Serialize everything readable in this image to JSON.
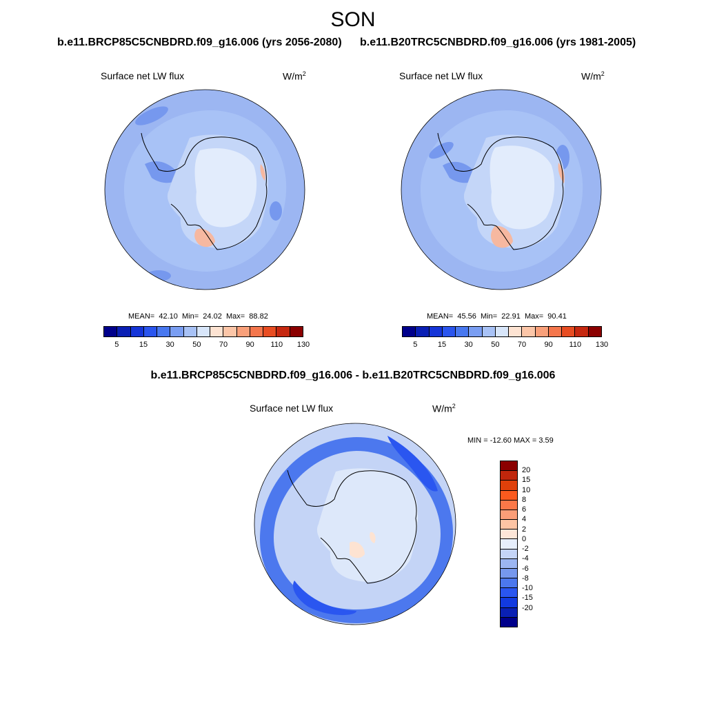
{
  "season": "SON",
  "panels": [
    {
      "case_title": "b.e11.BRCP85C5CNBDRD.f09_g16.006 (yrs 2056-2080)",
      "variable": "Surface net LW flux",
      "units_base": "W/m",
      "units_exp": "2",
      "mean_label": "MEAN=",
      "mean": "42.10",
      "min_label": "Min=",
      "min": "24.02",
      "max_label": "Max=",
      "max": "88.82"
    },
    {
      "case_title": "b.e11.B20TRC5CNBDRD.f09_g16.006 (yrs 1981-2005)",
      "variable": "Surface net LW flux",
      "units_base": "W/m",
      "units_exp": "2",
      "mean_label": "MEAN=",
      "mean": "45.56",
      "min_label": "Min=",
      "min": "22.91",
      "max_label": "Max=",
      "max": "90.41"
    }
  ],
  "difference": {
    "title": "b.e11.BRCP85C5CNBDRD.f09_g16.006 - b.e11.B20TRC5CNBDRD.f09_g16.006",
    "variable": "Surface net LW flux",
    "units_base": "W/m",
    "units_exp": "2",
    "minmax": "MIN = -12.60 MAX =   3.59"
  },
  "abs_colorbar": {
    "colors": [
      "#00008b",
      "#0a1fb4",
      "#1535d8",
      "#2a55ee",
      "#4878f0",
      "#7a9ef2",
      "#a8c2f6",
      "#d8e6fa",
      "#fde3d2",
      "#fcc6a8",
      "#f9a07a",
      "#f4764c",
      "#e84d22",
      "#c62810",
      "#8b0000"
    ],
    "tick_labels": [
      "5",
      "15",
      "30",
      "50",
      "70",
      "90",
      "110",
      "130"
    ]
  },
  "diff_colorbar": {
    "colors": [
      "#8b0000",
      "#c0260c",
      "#e0400a",
      "#fb5a1e",
      "#fb7848",
      "#fc9e78",
      "#fdc4a4",
      "#fde6d8",
      "#e6eefc",
      "#c4d4f6",
      "#9cb6f2",
      "#7698ee",
      "#4c78ee",
      "#2a56f0",
      "#123ae0",
      "#0a20b4",
      "#00008b"
    ],
    "tick_labels": [
      "20",
      "15",
      "10",
      "8",
      "6",
      "4",
      "2",
      "0",
      "-2",
      "-4",
      "-6",
      "-8",
      "-10",
      "-15",
      "-20"
    ]
  },
  "map_palette": {
    "ocean_outer": "#9cb6f2",
    "ocean_mid": "#a8c2f6",
    "band_dark": "#7698ee",
    "ice": "#c4d6f8",
    "plateau": "#e2ecfc",
    "warm": "#f6b8a0",
    "warm_light": "#fde3d2",
    "diff_base": "#c4d4f6",
    "diff_ring": "#4c78ee",
    "diff_ring_dark": "#2a56f0",
    "diff_land": "#dde8fa",
    "coast": "#000000"
  }
}
